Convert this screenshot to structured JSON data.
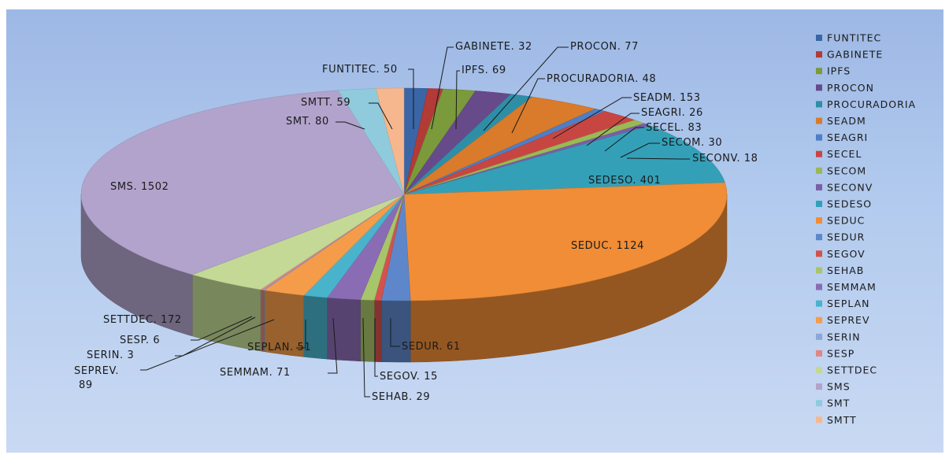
{
  "chart_data": {
    "type": "pie",
    "categories": [
      "FUNTITEC",
      "GABINETE",
      "IPFS",
      "PROCON",
      "PROCURADORIA",
      "SEADM",
      "SEAGRI",
      "SECEL",
      "SECOM",
      "SECONV",
      "SEDESO",
      "SEDUC",
      "SEDUR",
      "SEGOV",
      "SEHAB",
      "SEMMAM",
      "SEPLAN",
      "SEPREV",
      "SERIN",
      "SESP",
      "SETTDEC",
      "SMS",
      "SMT",
      "SMTT"
    ],
    "values": [
      50,
      32,
      69,
      77,
      48,
      153,
      26,
      83,
      30,
      18,
      401,
      1124,
      61,
      15,
      29,
      71,
      51,
      89,
      3,
      6,
      172,
      1502,
      80,
      59
    ],
    "data_labels": [
      "FUNTITEC. 50",
      "GABINETE. 32",
      "IPFS. 69",
      "PROCON. 77",
      "PROCURADORIA. 48",
      "SEADM. 153",
      "SEAGRI. 26",
      "SECEL. 83",
      "SECOM. 30",
      "SECONV. 18",
      "SEDESO. 401",
      "SEDUC. 1124",
      "SEDUR. 61",
      "SEGOV. 15",
      "SEHAB. 29",
      "SEMMAM. 71",
      "SEPLAN. 51",
      "SEPREV.",
      "SERIN. 3",
      "SESP. 6",
      "SETTDEC. 172",
      "SMS. 1502",
      "SMT. 80",
      "SMTT. 59"
    ],
    "data_label_extra": {
      "SEPREV": "89"
    },
    "colors": [
      "#3a66a7",
      "#b23a37",
      "#7a9a3b",
      "#674a8a",
      "#2e8ea6",
      "#d97b2b",
      "#4f7ec4",
      "#c84641",
      "#99b957",
      "#7b5ea8",
      "#33a0b8",
      "#f08d36",
      "#5d87ca",
      "#d3524e",
      "#a7c56a",
      "#8a6cb5",
      "#49b3cc",
      "#f59c4a",
      "#8aa7d8",
      "#e08784",
      "#c3d995",
      "#b2a3cc",
      "#8fcbdc",
      "#f7b78e"
    ],
    "legend_position": "right"
  }
}
